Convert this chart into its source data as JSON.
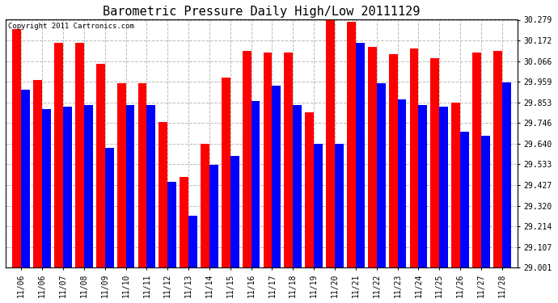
{
  "title": "Barometric Pressure Daily High/Low 20111129",
  "copyright": "Copyright 2011 Cartronics.com",
  "dates": [
    "11/06",
    "11/06",
    "11/07",
    "11/08",
    "11/09",
    "11/10",
    "11/11",
    "11/12",
    "11/13",
    "11/14",
    "11/15",
    "11/16",
    "11/17",
    "11/18",
    "11/19",
    "11/20",
    "11/21",
    "11/22",
    "11/23",
    "11/24",
    "11/25",
    "11/26",
    "11/27",
    "11/28"
  ],
  "highs": [
    30.23,
    29.97,
    30.16,
    30.16,
    30.05,
    29.95,
    29.95,
    29.75,
    29.47,
    29.64,
    29.98,
    30.12,
    30.11,
    30.11,
    29.8,
    30.275,
    30.27,
    30.14,
    30.1,
    30.13,
    30.08,
    29.85,
    30.11,
    30.12
  ],
  "lows": [
    29.92,
    29.82,
    29.83,
    29.84,
    29.62,
    29.84,
    29.84,
    29.445,
    29.27,
    29.53,
    29.575,
    29.86,
    29.94,
    29.84,
    29.64,
    29.64,
    30.16,
    29.95,
    29.87,
    29.84,
    29.83,
    29.7,
    29.68,
    29.955
  ],
  "ylim_min": 29.001,
  "ylim_max": 30.279,
  "yticks": [
    29.001,
    29.107,
    29.214,
    29.32,
    29.427,
    29.533,
    29.64,
    29.746,
    29.853,
    29.959,
    30.066,
    30.172,
    30.279
  ],
  "high_color": "#FF0000",
  "low_color": "#0000FF",
  "bg_color": "#FFFFFF",
  "grid_color": "#BBBBBB",
  "bar_width": 0.42,
  "title_fontsize": 11,
  "tick_fontsize": 7,
  "copyright_fontsize": 6.5
}
